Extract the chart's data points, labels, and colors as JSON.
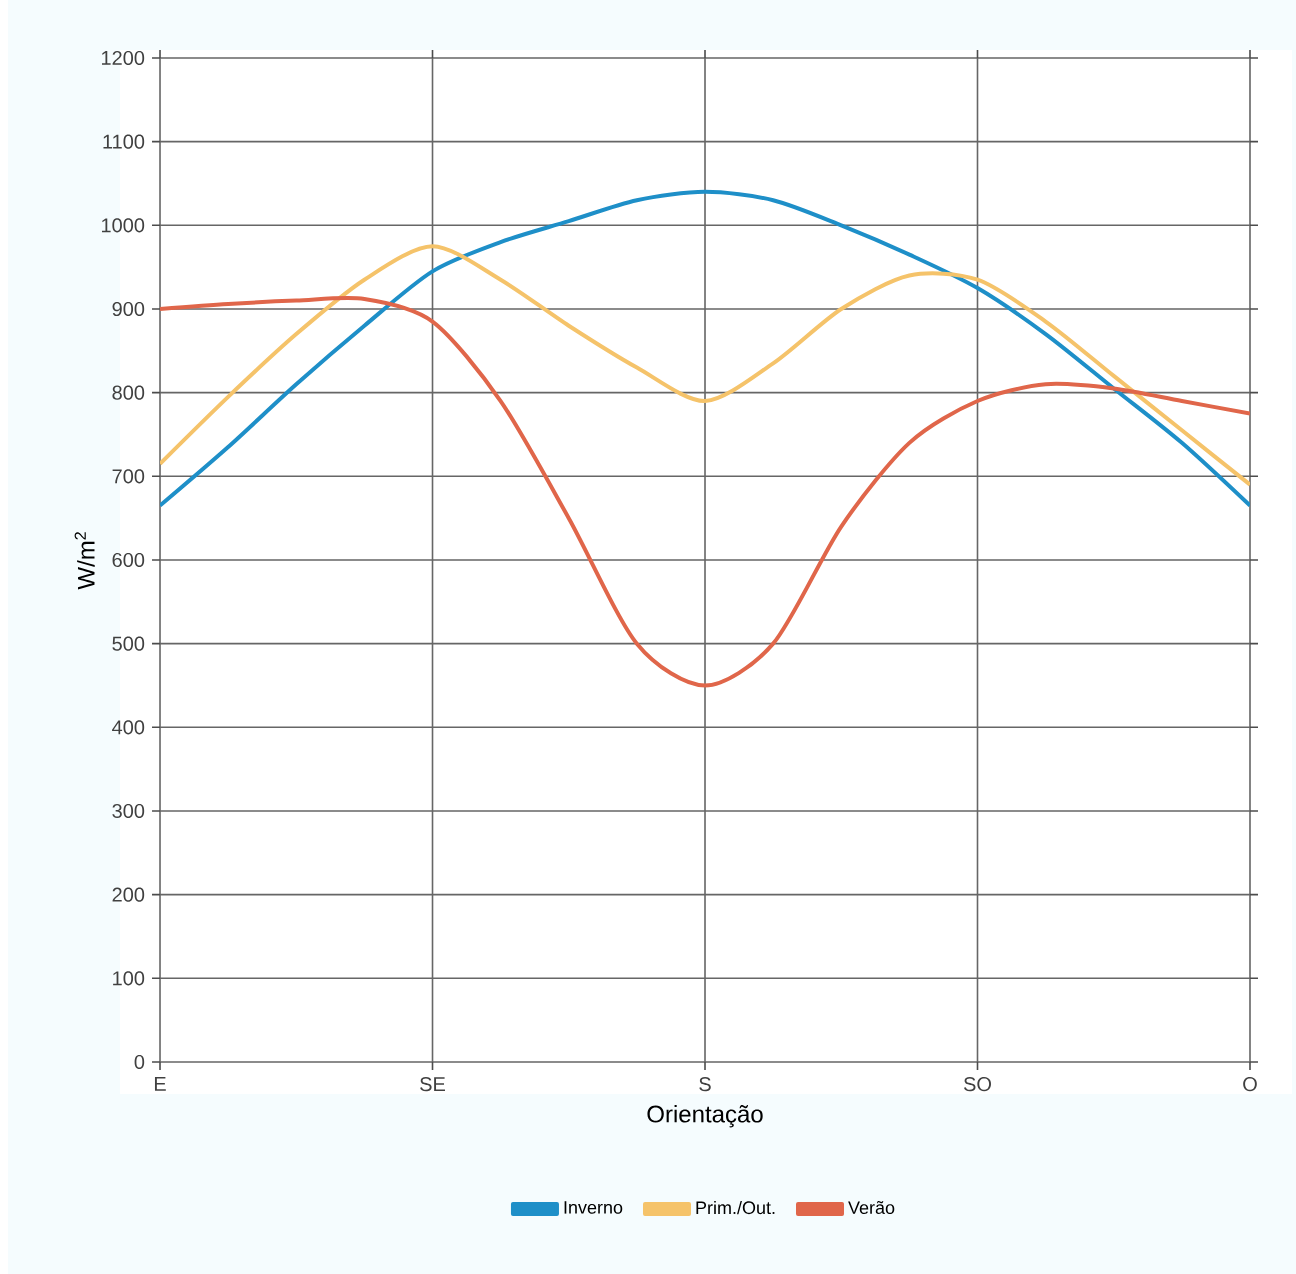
{
  "chart_data": {
    "type": "line",
    "xlabel": "Orientação",
    "ylabel": "W/m$^{2}$",
    "categories": [
      "E",
      null,
      null,
      null,
      "SE",
      null,
      null,
      null,
      "S",
      null,
      null,
      null,
      "SO",
      null,
      null,
      null,
      "O"
    ],
    "ylim": [
      0,
      1200
    ],
    "yticks": [
      0,
      100,
      200,
      300,
      400,
      500,
      600,
      700,
      800,
      900,
      1000,
      1100,
      1200
    ],
    "grid": true,
    "legend": "bottom",
    "marker": "none",
    "line_style": "solid",
    "series": [
      {
        "name": "Inverno",
        "color": "#1e8fc8",
        "values": [
          665,
          735,
          810,
          880,
          945,
          980,
          1005,
          1030,
          1040,
          1030,
          1000,
          965,
          925,
          870,
          805,
          740,
          665
        ]
      },
      {
        "name": "Prim./Out.",
        "color": "#f5c36a",
        "values": [
          715,
          795,
          870,
          935,
          975,
          935,
          880,
          830,
          790,
          835,
          900,
          940,
          935,
          885,
          820,
          755,
          690
        ]
      },
      {
        "name": "Verão",
        "color": "#e0664a",
        "values": [
          900,
          906,
          910,
          912,
          885,
          790,
          650,
          500,
          450,
          500,
          640,
          740,
          790,
          810,
          805,
          790,
          775
        ]
      }
    ]
  }
}
